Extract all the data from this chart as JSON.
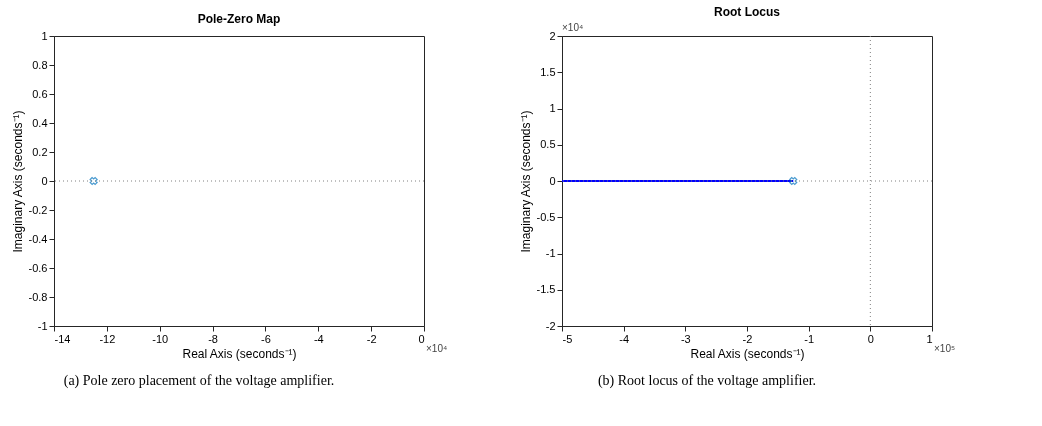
{
  "chart_data": [
    {
      "type": "scatter",
      "title": "Pole-Zero Map",
      "xlabel": "Real Axis (seconds⁻¹)",
      "ylabel": "Imaginary Axis (seconds⁻¹)",
      "xlim": [
        -14,
        0
      ],
      "xticks": [
        -14,
        -12,
        -10,
        -8,
        -6,
        -4,
        -2,
        0
      ],
      "ylim": [
        -1,
        1
      ],
      "yticks": [
        -1,
        -0.8,
        -0.6,
        -0.4,
        -0.2,
        0,
        0.2,
        0.4,
        0.6,
        0.8,
        1
      ],
      "grid": false,
      "marker": "cross",
      "series": [
        {
          "color": "#0072bd",
          "x": [
            -12.5
          ],
          "values": [
            0
          ]
        }
      ],
      "ref_lines": [
        {
          "axis": "y",
          "value": 0,
          "color": "#808080",
          "line_style": "dotted"
        }
      ],
      "annotations": [
        "×10⁴",
        "(a) Pole zero placement of the voltage amplifier."
      ]
    },
    {
      "type": "line",
      "title": "Root Locus",
      "xlabel": "Real Axis (seconds⁻¹)",
      "ylabel": "Imaginary Axis (seconds⁻¹)",
      "xlim": [
        -5,
        1
      ],
      "xticks": [
        -5,
        -4,
        -3,
        -2,
        -1,
        0,
        1
      ],
      "ylim": [
        -2,
        2
      ],
      "yticks": [
        -2,
        -1.5,
        -1,
        -0.5,
        0,
        0.5,
        1,
        1.5,
        2
      ],
      "grid": false,
      "series": [
        {
          "color": "#0000ff",
          "x": [
            -5,
            -1.25
          ],
          "values": [
            0,
            0
          ]
        },
        {
          "type": "scatter",
          "color": "#0072bd",
          "x": [
            -1.25
          ],
          "values": [
            0
          ],
          "marker": "cross"
        }
      ],
      "ref_lines": [
        {
          "axis": "y",
          "value": 0,
          "color": "#808080",
          "line_style": "dotted"
        },
        {
          "axis": "x",
          "value": 0,
          "color": "#808080",
          "line_style": "dotted"
        }
      ],
      "annotations": [
        "×10⁴",
        "×10⁵",
        "(b) Root locus of the voltage amplifier."
      ]
    }
  ]
}
